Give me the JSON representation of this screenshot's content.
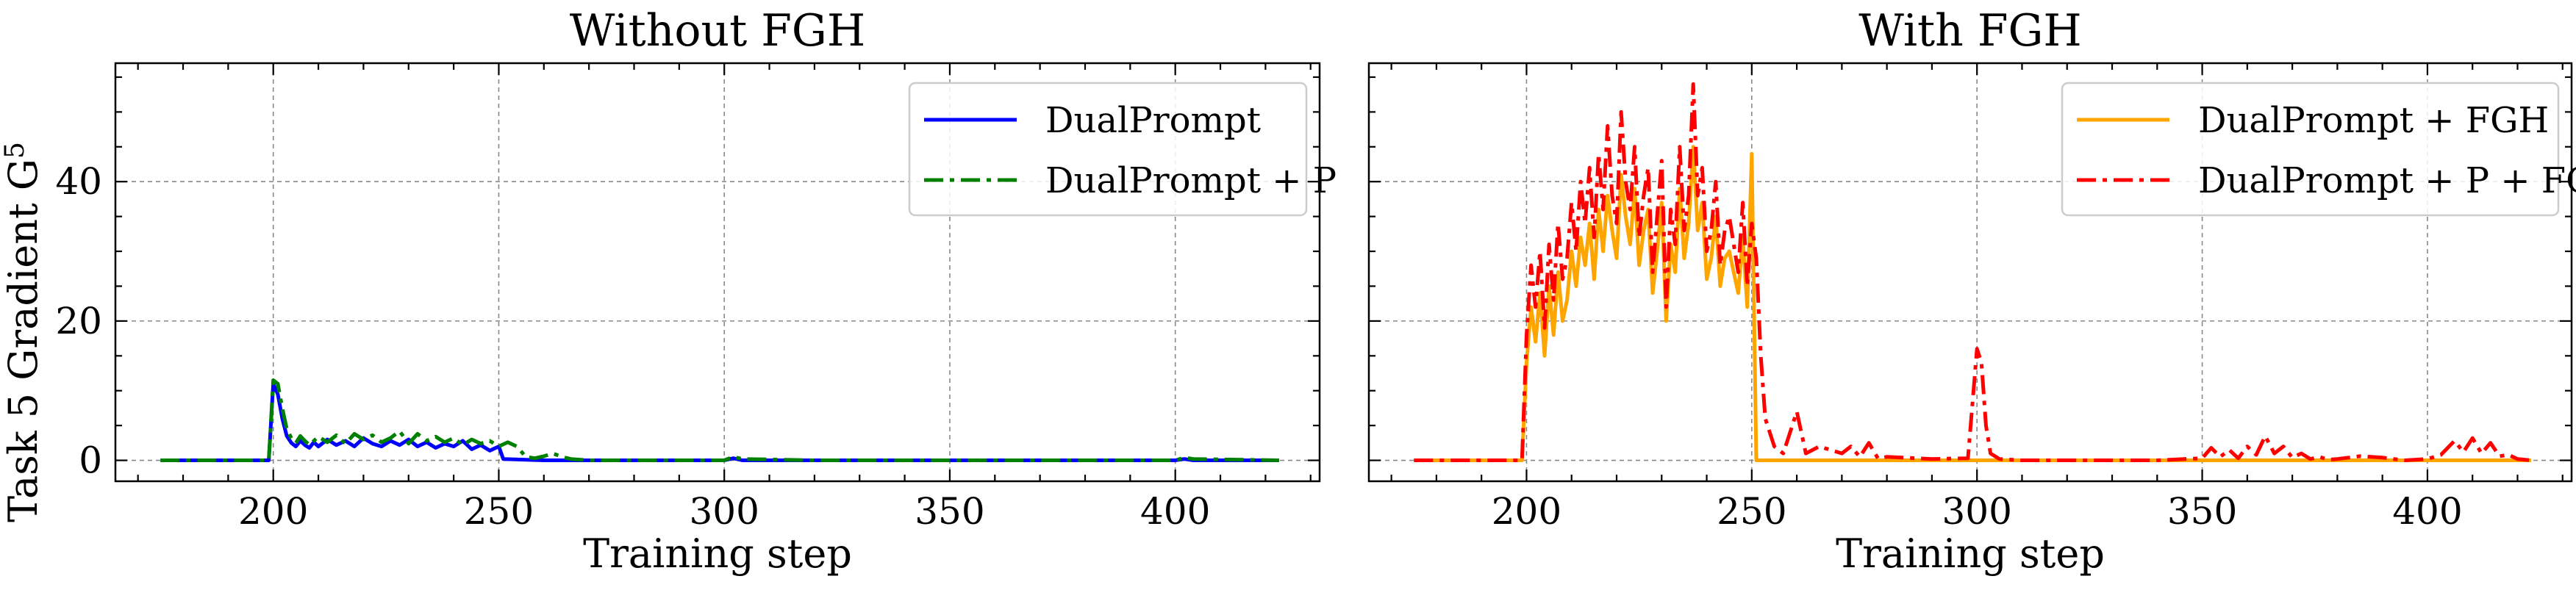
{
  "chart_data": [
    {
      "type": "line",
      "title": "Without FGH",
      "xlabel": "Training step",
      "ylabel": "Task 5 Gradient G",
      "ylabel_superscript": "5",
      "xlim": [
        165,
        432
      ],
      "ylim": [
        -3,
        57
      ],
      "xticks": [
        200,
        250,
        300,
        350,
        400
      ],
      "yticks": [
        0,
        20,
        40
      ],
      "grid": true,
      "legend_loc": "top-right",
      "series": [
        {
          "name": "DualPrompt",
          "color": "#0000ff",
          "style": "solid",
          "x": [
            175,
            199,
            200,
            201,
            202,
            203,
            204,
            205,
            206,
            207,
            208,
            209,
            210,
            212,
            214,
            216,
            218,
            220,
            222,
            224,
            226,
            228,
            230,
            232,
            234,
            236,
            238,
            240,
            242,
            244,
            246,
            248,
            250,
            251,
            260,
            280,
            300,
            302,
            304,
            320,
            350,
            380,
            400,
            402,
            404,
            423
          ],
          "y": [
            0,
            0,
            11.0,
            9.5,
            6.0,
            3.5,
            2.5,
            2.0,
            2.8,
            2.2,
            1.8,
            2.6,
            2.0,
            3.0,
            2.2,
            2.8,
            2.0,
            3.2,
            2.4,
            2.0,
            2.8,
            2.2,
            3.0,
            2.0,
            2.6,
            1.8,
            2.4,
            2.0,
            2.8,
            1.6,
            2.2,
            1.4,
            2.0,
            0.2,
            0,
            0,
            0,
            0.3,
            0,
            0,
            0,
            0,
            0,
            0.2,
            0,
            0
          ]
        },
        {
          "name": "DualPrompt + P",
          "color": "#008000",
          "style": "dashdot",
          "x": [
            175,
            199,
            200,
            201,
            202,
            203,
            204,
            205,
            206,
            207,
            208,
            210,
            212,
            214,
            216,
            218,
            220,
            222,
            224,
            226,
            228,
            230,
            232,
            234,
            236,
            238,
            240,
            242,
            244,
            246,
            248,
            250,
            252,
            254,
            256,
            258,
            260,
            262,
            264,
            266,
            270,
            300,
            302,
            304,
            320,
            350,
            380,
            400,
            402,
            404,
            423
          ],
          "y": [
            0,
            0,
            11.5,
            11.0,
            7.5,
            4.5,
            3.2,
            2.5,
            3.5,
            2.8,
            2.2,
            3.4,
            2.6,
            3.6,
            2.4,
            3.8,
            3.0,
            3.6,
            2.6,
            3.2,
            4.2,
            2.4,
            3.8,
            2.8,
            3.4,
            2.6,
            3.2,
            2.2,
            3.0,
            2.4,
            2.8,
            2.0,
            2.6,
            2.0,
            0.5,
            0.3,
            0.6,
            1.0,
            0.5,
            0.2,
            0,
            0,
            0.5,
            0.2,
            0,
            0,
            0,
            0,
            0.4,
            0.2,
            0
          ]
        }
      ]
    },
    {
      "type": "line",
      "title": "With FGH",
      "xlabel": "Training step",
      "ylabel": "",
      "xlim": [
        165,
        432
      ],
      "ylim": [
        -3,
        57
      ],
      "xticks": [
        200,
        250,
        300,
        350,
        400
      ],
      "yticks": [
        0,
        20,
        40
      ],
      "grid": true,
      "legend_loc": "top-right",
      "series": [
        {
          "name": "DualPrompt + FGH",
          "color": "#ffa500",
          "style": "solid",
          "x": [
            175,
            199,
            200,
            201,
            202,
            203,
            204,
            205,
            206,
            207,
            208,
            209,
            210,
            211,
            212,
            213,
            214,
            215,
            216,
            217,
            218,
            219,
            220,
            221,
            222,
            223,
            224,
            225,
            226,
            227,
            228,
            229,
            230,
            231,
            232,
            233,
            234,
            235,
            236,
            237,
            238,
            239,
            240,
            241,
            242,
            243,
            244,
            245,
            246,
            247,
            248,
            249,
            250,
            251,
            300,
            350,
            400,
            423
          ],
          "y": [
            0,
            0,
            14,
            22,
            17,
            24,
            15,
            25,
            18,
            27,
            20,
            23,
            30,
            25,
            32,
            28,
            34,
            26,
            36,
            30,
            38,
            33,
            29,
            41,
            35,
            31,
            39,
            28,
            33,
            36,
            24,
            30,
            37,
            20,
            31,
            27,
            39,
            29,
            34,
            45,
            33,
            37,
            26,
            29,
            35,
            25,
            29,
            30,
            27,
            24,
            32,
            22,
            44,
            0,
            0,
            0,
            0,
            0
          ]
        },
        {
          "name": "DualPrompt + P + FGH",
          "color": "#ff0000",
          "style": "dashdot",
          "x": [
            175,
            199,
            200,
            201,
            202,
            203,
            204,
            205,
            206,
            207,
            208,
            209,
            210,
            211,
            212,
            213,
            214,
            215,
            216,
            217,
            218,
            219,
            220,
            221,
            222,
            223,
            224,
            225,
            226,
            227,
            228,
            229,
            230,
            231,
            232,
            233,
            234,
            235,
            236,
            237,
            238,
            239,
            240,
            241,
            242,
            243,
            244,
            245,
            246,
            247,
            248,
            249,
            250,
            251,
            252,
            253,
            255,
            257,
            259,
            260,
            262,
            265,
            270,
            272,
            274,
            276,
            278,
            280,
            290,
            298,
            300,
            301,
            302,
            303,
            305,
            310,
            320,
            340,
            350,
            352,
            354,
            356,
            358,
            360,
            362,
            364,
            366,
            368,
            370,
            372,
            374,
            376,
            378,
            380,
            385,
            390,
            395,
            400,
            403,
            406,
            408,
            410,
            412,
            414,
            416,
            418,
            420,
            423
          ],
          "y": [
            0,
            0,
            18,
            28,
            22,
            30,
            19,
            31,
            23,
            34,
            26,
            29,
            37,
            30,
            40,
            34,
            42,
            32,
            44,
            36,
            48,
            38,
            34,
            50,
            40,
            36,
            45,
            32,
            38,
            42,
            27,
            35,
            43,
            22,
            36,
            31,
            45,
            33,
            38,
            54,
            38,
            42,
            30,
            33,
            40,
            28,
            33,
            35,
            31,
            27,
            37,
            25,
            34,
            29,
            15,
            6,
            2,
            1,
            5,
            7,
            1,
            2,
            1,
            2,
            0.5,
            2.5,
            0.3,
            0.5,
            0.2,
            0.3,
            16,
            14,
            5,
            1,
            0.2,
            0,
            0,
            0,
            0.3,
            1.8,
            0.5,
            1.5,
            0.3,
            2.0,
            0.8,
            3.5,
            1.0,
            2.0,
            0.4,
            1.0,
            0.2,
            0.5,
            0.1,
            0.2,
            0.6,
            0.4,
            0,
            0.2,
            0.8,
            2.8,
            1.2,
            3.2,
            1.0,
            2.5,
            0.6,
            0.8,
            0.2,
            0
          ]
        }
      ]
    }
  ]
}
